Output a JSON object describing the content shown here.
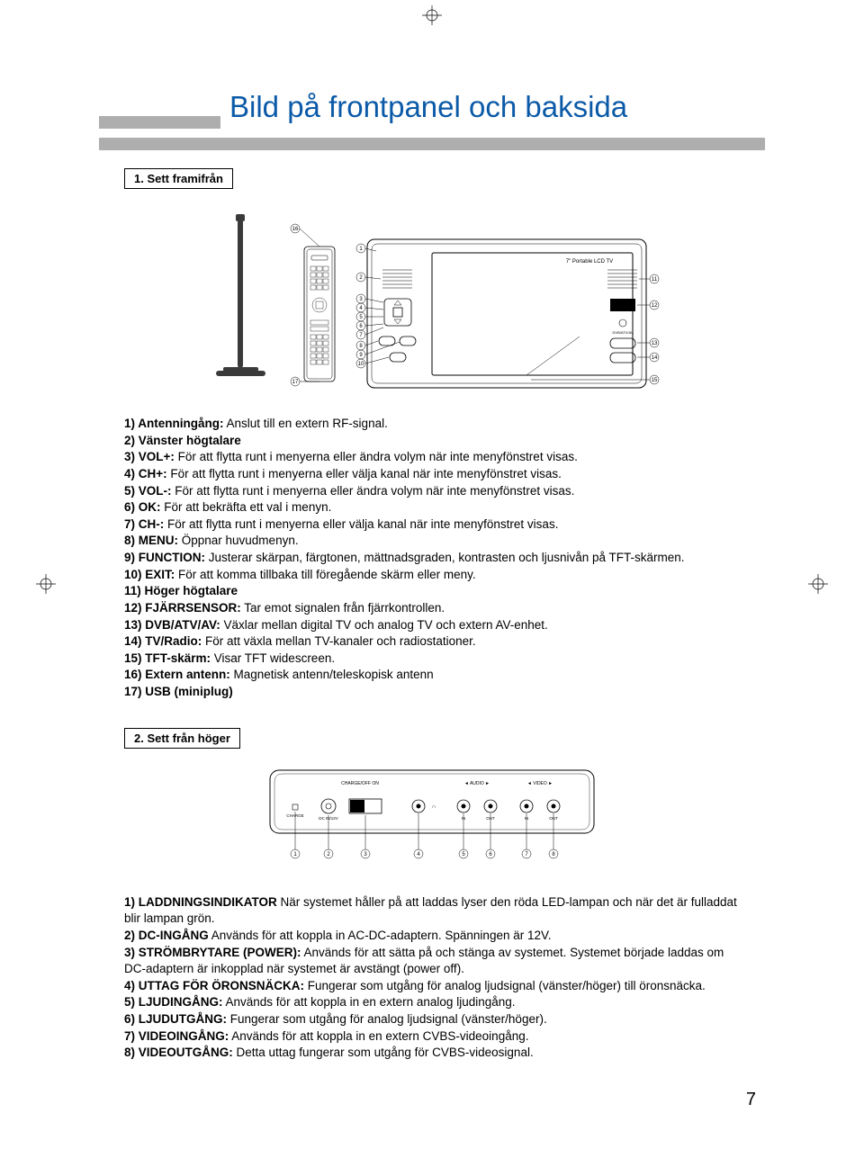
{
  "colors": {
    "accent": "#0b5aa8",
    "band": "#aeaeae",
    "text": "#000000",
    "bg": "#ffffff"
  },
  "title": "Bild på frontpanel och baksida",
  "page_number": "7",
  "section1": {
    "label": "1. Sett framifrån",
    "device_label": "7\" Portable LCD TV",
    "dvb_label": "DVB/ATV/AV",
    "items": [
      {
        "n": "1)",
        "k": "Antenningång:",
        "v": " Anslut till en extern RF-signal."
      },
      {
        "n": "2)",
        "k": "Vänster högtalare",
        "v": ""
      },
      {
        "n": "3)",
        "k": "VOL+:",
        "v": " För att flytta runt i menyerna eller ändra volym när inte menyfönstret visas."
      },
      {
        "n": "4)",
        "k": "CH+:",
        "v": " För att flytta runt i menyerna eller välja kanal när inte menyfönstret visas."
      },
      {
        "n": "5)",
        "k": "VOL-:",
        "v": " För att flytta runt i menyerna eller ändra volym när inte menyfönstret visas."
      },
      {
        "n": "6)",
        "k": "OK:",
        "v": " För att bekräfta ett val i menyn."
      },
      {
        "n": "7)",
        "k": "CH-:",
        "v": " För att flytta runt i menyerna eller välja kanal när inte menyfönstret visas."
      },
      {
        "n": "8)",
        "k": "MENU:",
        "v": " Öppnar huvudmenyn."
      },
      {
        "n": "9)",
        "k": "FUNCTION:",
        "v": " Justerar skärpan, färgtonen, mättnadsgraden, kontrasten och ljusnivån på TFT-skärmen."
      },
      {
        "n": "10)",
        "k": "EXIT:",
        "v": " För att komma tillbaka till föregående skärm eller meny."
      },
      {
        "n": "11)",
        "k": "Höger högtalare",
        "v": ""
      },
      {
        "n": "12)",
        "k": "FJÄRRSENSOR:",
        "v": " Tar emot signalen från fjärrkontrollen."
      },
      {
        "n": "13)",
        "k": "DVB/ATV/AV:",
        "v": " Växlar mellan digital TV och analog TV och extern AV-enhet."
      },
      {
        "n": "14)",
        "k": "TV/Radio:",
        "v": " För att växla mellan TV-kanaler och radiostationer."
      },
      {
        "n": "15)",
        "k": "TFT-skärm:",
        "v": " Visar TFT widescreen."
      },
      {
        "n": "16)",
        "k": "Extern antenn:",
        "v": " Magnetisk antenn/teleskopisk antenn"
      },
      {
        "n": "17)",
        "k": "USB (miniplug)",
        "v": ""
      }
    ]
  },
  "section2": {
    "label": "2. Sett från höger",
    "panel_labels": {
      "charge": "CHARGE",
      "switch": "CHARGE/OFF  ON",
      "dc": "DC IN/12V",
      "audio": "AUDIO",
      "video": "VIDEO",
      "in1": "IN",
      "out1": "OUT",
      "in2": "IN",
      "out2": "OUT"
    },
    "items": [
      {
        "n": "1)",
        "k": "LADDNINGSINDIKATOR",
        "v": " När systemet håller på att laddas lyser den röda LED-lampan och när det är fulladdat blir lampan grön."
      },
      {
        "n": "2)",
        "k": "DC-INGÅNG",
        "v": " Används för att koppla in AC-DC-adaptern. Spänningen är 12V."
      },
      {
        "n": "3)",
        "k": "STRÖMBRYTARE (POWER):",
        "v": " Används för att sätta på och stänga av systemet. Systemet började laddas om DC-adaptern är inkopplad när systemet är avstängt (power off)."
      },
      {
        "n": "4)",
        "k": "UTTAG FÖR ÖRONSNÄCKA:",
        "v": " Fungerar som utgång för analog ljudsignal (vänster/höger) till öronsnäcka."
      },
      {
        "n": "5)",
        "k": "LJUDINGÅNG:",
        "v": " Används för att koppla in en extern analog ljudingång."
      },
      {
        "n": "6)",
        "k": "LJUDUTGÅNG:",
        "v": " Fungerar som utgång för analog ljudsignal (vänster/höger)."
      },
      {
        "n": "7)",
        "k": "VIDEOINGÅNG:",
        "v": " Används för att koppla in en extern CVBS-videoingång."
      },
      {
        "n": "8)",
        "k": "VIDEOUTGÅNG:",
        "v": " Detta uttag fungerar som utgång för CVBS-videosignal."
      }
    ]
  }
}
